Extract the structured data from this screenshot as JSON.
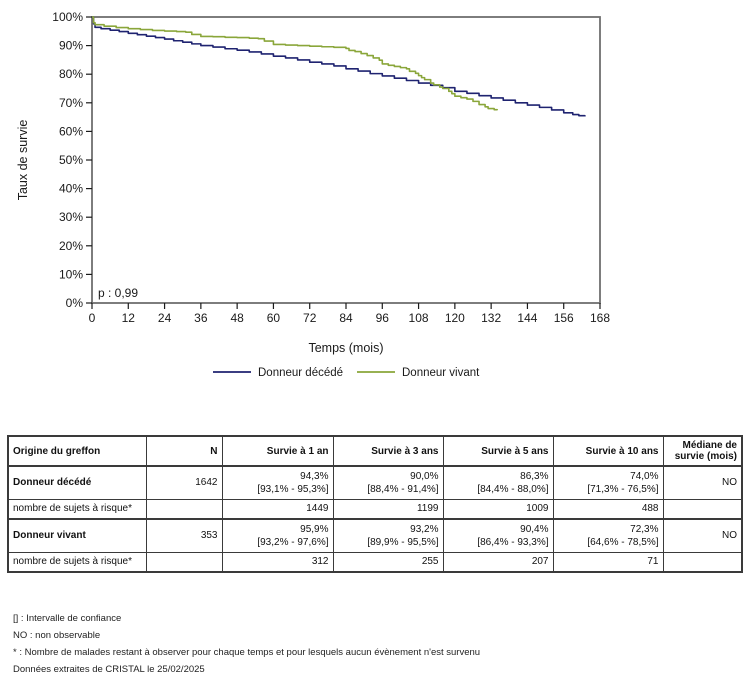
{
  "chart_data": {
    "type": "line",
    "subtype": "kaplan-meier-step",
    "title": "",
    "xlabel": "Temps (mois)",
    "ylabel": "Taux de survie",
    "annotation": "p : 0,99",
    "xlim": [
      0,
      168
    ],
    "ylim": [
      0,
      100
    ],
    "x_ticks": [
      0,
      12,
      24,
      36,
      48,
      60,
      72,
      84,
      96,
      108,
      120,
      132,
      144,
      156,
      168
    ],
    "y_ticks": [
      0,
      10,
      20,
      30,
      40,
      50,
      60,
      70,
      80,
      90,
      100
    ],
    "y_tick_suffix": "%",
    "grid": false,
    "legend_position": "bottom",
    "series": [
      {
        "name": "Donneur décédé",
        "color": "#1f2370",
        "points": [
          [
            0,
            100
          ],
          [
            0.5,
            97.6
          ],
          [
            1,
            96.4
          ],
          [
            3,
            95.9
          ],
          [
            6,
            95.4
          ],
          [
            9,
            94.9
          ],
          [
            12,
            94.3
          ],
          [
            15,
            93.8
          ],
          [
            18,
            93.3
          ],
          [
            21,
            92.8
          ],
          [
            24,
            92.3
          ],
          [
            27,
            91.7
          ],
          [
            30,
            91.2
          ],
          [
            33,
            90.6
          ],
          [
            36,
            90.0
          ],
          [
            40,
            89.5
          ],
          [
            44,
            88.9
          ],
          [
            48,
            88.4
          ],
          [
            52,
            87.8
          ],
          [
            56,
            87.1
          ],
          [
            60,
            86.3
          ],
          [
            64,
            85.7
          ],
          [
            68,
            85.0
          ],
          [
            72,
            84.2
          ],
          [
            76,
            83.6
          ],
          [
            80,
            82.9
          ],
          [
            84,
            81.9
          ],
          [
            88,
            81.1
          ],
          [
            92,
            80.2
          ],
          [
            96,
            79.4
          ],
          [
            100,
            78.6
          ],
          [
            104,
            77.8
          ],
          [
            108,
            76.9
          ],
          [
            112,
            76.1
          ],
          [
            116,
            75.3
          ],
          [
            120,
            74.0
          ],
          [
            124,
            73.3
          ],
          [
            128,
            72.5
          ],
          [
            132,
            71.7
          ],
          [
            136,
            70.9
          ],
          [
            140,
            70.0
          ],
          [
            144,
            69.2
          ],
          [
            148,
            68.4
          ],
          [
            152,
            67.5
          ],
          [
            156,
            66.5
          ],
          [
            159,
            65.9
          ],
          [
            161,
            65.5
          ],
          [
            163,
            65.2
          ]
        ]
      },
      {
        "name": "Donneur vivant",
        "color": "#8aa63a",
        "points": [
          [
            0,
            100
          ],
          [
            0.5,
            98.0
          ],
          [
            1,
            97.3
          ],
          [
            4,
            96.8
          ],
          [
            8,
            96.3
          ],
          [
            12,
            95.9
          ],
          [
            16,
            95.6
          ],
          [
            20,
            95.3
          ],
          [
            24,
            95.1
          ],
          [
            28,
            94.9
          ],
          [
            31,
            94.7
          ],
          [
            33,
            93.9
          ],
          [
            36,
            93.2
          ],
          [
            40,
            93.1
          ],
          [
            44,
            92.9
          ],
          [
            48,
            92.8
          ],
          [
            52,
            92.6
          ],
          [
            55,
            92.4
          ],
          [
            57,
            91.6
          ],
          [
            60,
            90.4
          ],
          [
            64,
            90.2
          ],
          [
            68,
            90.0
          ],
          [
            72,
            89.8
          ],
          [
            76,
            89.6
          ],
          [
            80,
            89.4
          ],
          [
            84,
            89.0
          ],
          [
            85,
            88.3
          ],
          [
            87,
            87.9
          ],
          [
            89,
            87.2
          ],
          [
            91,
            86.5
          ],
          [
            93,
            85.7
          ],
          [
            95,
            84.9
          ],
          [
            96,
            83.6
          ],
          [
            98,
            83.1
          ],
          [
            100,
            82.7
          ],
          [
            102,
            82.3
          ],
          [
            104,
            81.9
          ],
          [
            105,
            81.0
          ],
          [
            107,
            80.3
          ],
          [
            108,
            79.5
          ],
          [
            109,
            78.8
          ],
          [
            110,
            78.1
          ],
          [
            112,
            76.9
          ],
          [
            113,
            76.3
          ],
          [
            115,
            75.5
          ],
          [
            116,
            75.0
          ],
          [
            118,
            74.0
          ],
          [
            119,
            73.2
          ],
          [
            120,
            72.3
          ],
          [
            122,
            71.8
          ],
          [
            124,
            71.3
          ],
          [
            126,
            70.5
          ],
          [
            128,
            69.4
          ],
          [
            130,
            68.6
          ],
          [
            131,
            68.0
          ],
          [
            133,
            67.6
          ],
          [
            134,
            67.4
          ]
        ]
      }
    ]
  },
  "table": {
    "header": {
      "col0": "Origine du greffon",
      "col1": "N",
      "col2": "Survie à 1 an",
      "col3": "Survie à 3 ans",
      "col4": "Survie à 5 ans",
      "col5": "Survie à 10 ans",
      "col6": "Médiane de survie (mois)"
    },
    "row_decede": {
      "label": "Donneur décédé",
      "n": "1642",
      "s1": "94,3%",
      "s1_ci": "[93,1% - 95,3%]",
      "s3": "90,0%",
      "s3_ci": "[88,4% - 91,4%]",
      "s5": "86,3%",
      "s5_ci": "[84,4% - 88,0%]",
      "s10": "74,0%",
      "s10_ci": "[71,3% - 76,5%]",
      "mediane": "NO"
    },
    "row_decede_risque": {
      "label": "nombre de sujets à risque*",
      "v1": "1449",
      "v3": "1199",
      "v5": "1009",
      "v10": "488"
    },
    "row_vivant": {
      "label": "Donneur vivant",
      "n": "353",
      "s1": "95,9%",
      "s1_ci": "[93,2% - 97,6%]",
      "s3": "93,2%",
      "s3_ci": "[89,9% - 95,5%]",
      "s5": "90,4%",
      "s5_ci": "[86,4% - 93,3%]",
      "s10": "72,3%",
      "s10_ci": "[64,6% - 78,5%]",
      "mediane": "NO"
    },
    "row_vivant_risque": {
      "label": "nombre de sujets à risque*",
      "v1": "312",
      "v3": "255",
      "v5": "207",
      "v10": "71"
    }
  },
  "footnotes": [
    "[] : Intervalle de confiance",
    "NO : non observable",
    "* : Nombre de malades restant à observer pour chaque temps et pour lesquels aucun évènement n'est survenu",
    "Données extraites de CRISTAL le 25/02/2025"
  ]
}
